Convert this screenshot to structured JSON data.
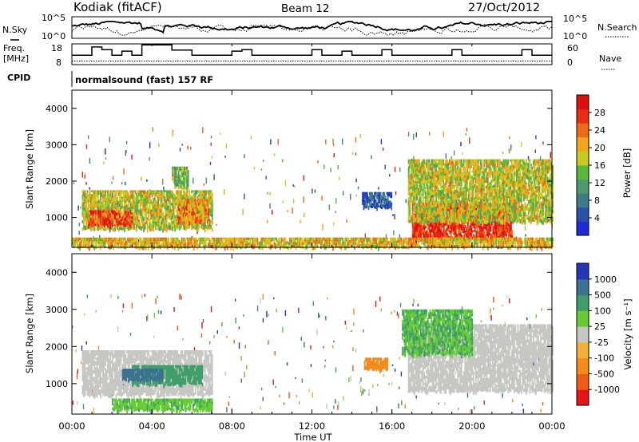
{
  "header": {
    "station": "Kodiak (fitACF)",
    "beam": "Beam 12",
    "date": "27/Oct/2012"
  },
  "noise_panel": {
    "left_label": "N.Sky",
    "right_label": "N.Search",
    "ticks": [
      "10^5",
      "10^0"
    ]
  },
  "freq_panel": {
    "left_label_1": "Freq.",
    "left_label_2": "[MHz]",
    "left_ticks": [
      18,
      8
    ],
    "right_ticks": [
      60,
      0
    ],
    "right_label": "Nave"
  },
  "cpid_panel": {
    "label": "CPID",
    "program": "normalsound (fast) 157 RF"
  },
  "colors": {
    "power_scale": [
      "#1c2bd6",
      "#2a50a8",
      "#3c7c8a",
      "#4b9a6a",
      "#58b83a",
      "#c6cc22",
      "#f2a51c",
      "#ef6a15",
      "#ea2c12",
      "#dd1010"
    ],
    "velocity_scale": [
      "#e81414",
      "#ef5a14",
      "#f48a1a",
      "#f6b03a",
      "#c6c6c2",
      "#66cc33",
      "#3e9e68",
      "#3c7090",
      "#2236b8"
    ]
  },
  "chart_data": [
    {
      "type": "heatmap",
      "title": "",
      "panel": "power",
      "xlabel": "",
      "ylabel": "Slant Range [km]",
      "x_range_hours": [
        0,
        24
      ],
      "ylim": [
        180,
        4500
      ],
      "y_ticks": [
        1000,
        2000,
        3000,
        4000
      ],
      "colorbar": {
        "label": "Power [dB]",
        "range": [
          0,
          32
        ],
        "ticks": [
          4,
          8,
          12,
          16,
          20,
          24,
          28
        ]
      },
      "echo_regions": [
        {
          "t_start": 0.5,
          "t_end": 7.0,
          "r_low": 700,
          "r_high": 1750,
          "level": 0.55
        },
        {
          "t_start": 0.8,
          "t_end": 3.0,
          "r_low": 800,
          "r_high": 1200,
          "level": 0.82
        },
        {
          "t_start": 5.3,
          "t_end": 6.8,
          "r_low": 900,
          "r_high": 1500,
          "level": 0.7
        },
        {
          "t_start": 5.0,
          "t_end": 5.8,
          "r_low": 1800,
          "r_high": 2400,
          "level": 0.45
        },
        {
          "t_start": 14.5,
          "t_end": 16.0,
          "r_low": 1300,
          "r_high": 1700,
          "level": 0.18
        },
        {
          "t_start": 17.0,
          "t_end": 22.0,
          "r_low": 400,
          "r_high": 1400,
          "level": 0.88
        },
        {
          "t_start": 16.8,
          "t_end": 24.0,
          "r_low": 900,
          "r_high": 2600,
          "level": 0.55
        },
        {
          "t_start": 0.0,
          "t_end": 24.0,
          "r_low": 200,
          "r_high": 450,
          "level": 0.62
        }
      ]
    },
    {
      "type": "heatmap",
      "title": "",
      "panel": "velocity",
      "xlabel": "Time UT",
      "ylabel": "Slant Range [km]",
      "x_range_hours": [
        0,
        24
      ],
      "x_ticks": [
        "00:00",
        "04:00",
        "08:00",
        "12:00",
        "16:00",
        "20:00",
        "00:00"
      ],
      "ylim": [
        180,
        4500
      ],
      "y_ticks": [
        1000,
        2000,
        3000,
        4000
      ],
      "colorbar": {
        "label": "Velocity [m s⁻¹]",
        "ticks": [
          "1000",
          "500",
          "100",
          "25",
          "-25",
          "-100",
          "-500",
          "-1000"
        ]
      },
      "echo_regions": [
        {
          "t_start": 0.5,
          "t_end": 7.0,
          "r_low": 700,
          "r_high": 1900,
          "velocity": 0
        },
        {
          "t_start": 3.0,
          "t_end": 6.5,
          "r_low": 1000,
          "r_high": 1500,
          "velocity": 180
        },
        {
          "t_start": 2.5,
          "t_end": 4.5,
          "r_low": 1100,
          "r_high": 1400,
          "velocity": 400
        },
        {
          "t_start": 14.6,
          "t_end": 15.8,
          "r_low": 1400,
          "r_high": 1700,
          "velocity": -150
        },
        {
          "t_start": 16.8,
          "t_end": 24.0,
          "r_low": 800,
          "r_high": 2600,
          "velocity": 0
        },
        {
          "t_start": 16.5,
          "t_end": 20.0,
          "r_low": 1800,
          "r_high": 3000,
          "velocity": 60
        },
        {
          "t_start": 2.0,
          "t_end": 7.0,
          "r_low": 300,
          "r_high": 600,
          "velocity": 50
        }
      ]
    }
  ]
}
